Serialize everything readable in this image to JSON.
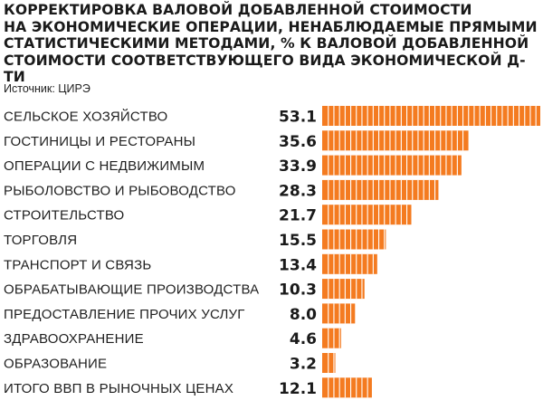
{
  "header": {
    "title_lines": [
      "КОРРЕКТИРОВКА ВАЛОВОЙ ДОБАВЛЕННОЙ СТОИМОСТИ",
      "НА ЭКОНОМИЧЕСКИЕ ОПЕРАЦИИ, НЕНАБЛЮДАЕМЫЕ ПРЯМЫМИ",
      "СТАТИСТИЧЕСКИМИ МЕТОДАМИ, % К ВАЛОВОЙ ДОБАВЛЕННОЙ",
      "СТОИМОСТИ СООТВЕТСТВУЮЩЕГО ВИДА ЭКОНОМИЧЕСКОЙ Д-ТИ"
    ],
    "source": "Источник: ЦИРЭ"
  },
  "colors": {
    "bar": "#F47B20",
    "segment_divider": "#ffffff"
  },
  "chart_data": {
    "type": "bar",
    "orientation": "horizontal",
    "title": "КОРРЕКТИРОВКА ВАЛОВОЙ ДОБАВЛЕННОЙ СТОИМОСТИ НА ЭКОНОМИЧЕСКИЕ ОПЕРАЦИИ, НЕНАБЛЮДАЕМЫЕ ПРЯМЫМИ СТАТИСТИЧЕСКИМИ МЕТОДАМИ, % К ВАЛОВОЙ ДОБАВЛЕННОЙ СТОИМОСТИ СООТВЕТСТВУЮЩЕГО ВИДА ЭКОНОМИЧЕСКОЙ Д-ТИ",
    "categories": [
      "СЕЛЬСКОЕ ХОЗЯЙСТВО",
      "ГОСТИНИЦЫ И РЕСТОРАНЫ",
      "ОПЕРАЦИИ С НЕДВИЖИМЫМ",
      "РЫБОЛОВСТВО И РЫБОВОДСТВО",
      "СТРОИТЕЛЬСТВО",
      "ТОРГОВЛЯ",
      "ТРАНСПОРТ И СВЯЗЬ",
      "ОБРАБАТЫВАЮЩИЕ ПРОИЗВОДСТВА",
      "ПРЕДОСТАВЛЕНИЕ ПРОЧИХ УСЛУГ",
      "ЗДРАВООХРАНЕНИЕ",
      "ОБРАЗОВАНИЕ",
      "ИТОГО ВВП В РЫНОЧНЫХ ЦЕНАХ"
    ],
    "values": [
      53.1,
      35.6,
      33.9,
      28.3,
      21.7,
      15.5,
      13.4,
      10.3,
      8.0,
      4.6,
      3.2,
      12.1
    ],
    "value_labels": [
      "53.1",
      "35.6",
      "33.9",
      "28.3",
      "21.7",
      "15.5",
      "13.4",
      "10.3",
      "8.0",
      "4.6",
      "3.2",
      "12.1"
    ],
    "xlim": [
      0,
      53.1
    ],
    "grid": false,
    "legend": "none"
  }
}
